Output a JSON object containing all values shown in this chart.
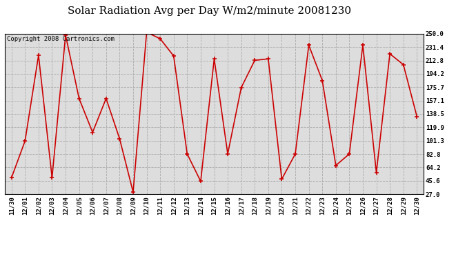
{
  "title": "Solar Radiation Avg per Day W/m2/minute 20081230",
  "copyright": "Copyright 2008 Cartronics.com",
  "labels": [
    "11/30",
    "12/01",
    "12/02",
    "12/03",
    "12/04",
    "12/05",
    "12/06",
    "12/07",
    "12/08",
    "12/09",
    "12/10",
    "12/11",
    "12/12",
    "12/13",
    "12/14",
    "12/15",
    "12/16",
    "12/17",
    "12/18",
    "12/19",
    "12/20",
    "12/21",
    "12/22",
    "12/23",
    "12/24",
    "12/25",
    "12/26",
    "12/27",
    "12/28",
    "12/29",
    "12/30"
  ],
  "values": [
    50.0,
    101.0,
    220.0,
    50.0,
    248.0,
    160.0,
    113.0,
    160.0,
    104.0,
    30.0,
    252.0,
    243.0,
    219.0,
    83.0,
    45.0,
    215.0,
    83.0,
    175.0,
    213.0,
    215.0,
    48.0,
    83.0,
    234.0,
    185.0,
    67.0,
    83.0,
    234.0,
    57.0,
    222.0,
    207.0,
    135.0
  ],
  "line_color": "#cc0000",
  "bg_color": "#ffffff",
  "plot_bg_color": "#dddddd",
  "grid_color": "#aaaaaa",
  "ymin": 27.0,
  "ymax": 250.0,
  "yticks": [
    27.0,
    45.6,
    64.2,
    82.8,
    101.3,
    119.9,
    138.5,
    157.1,
    175.7,
    194.2,
    212.8,
    231.4,
    250.0
  ],
  "title_fontsize": 11,
  "tick_fontsize": 6.5,
  "copyright_fontsize": 6.5
}
